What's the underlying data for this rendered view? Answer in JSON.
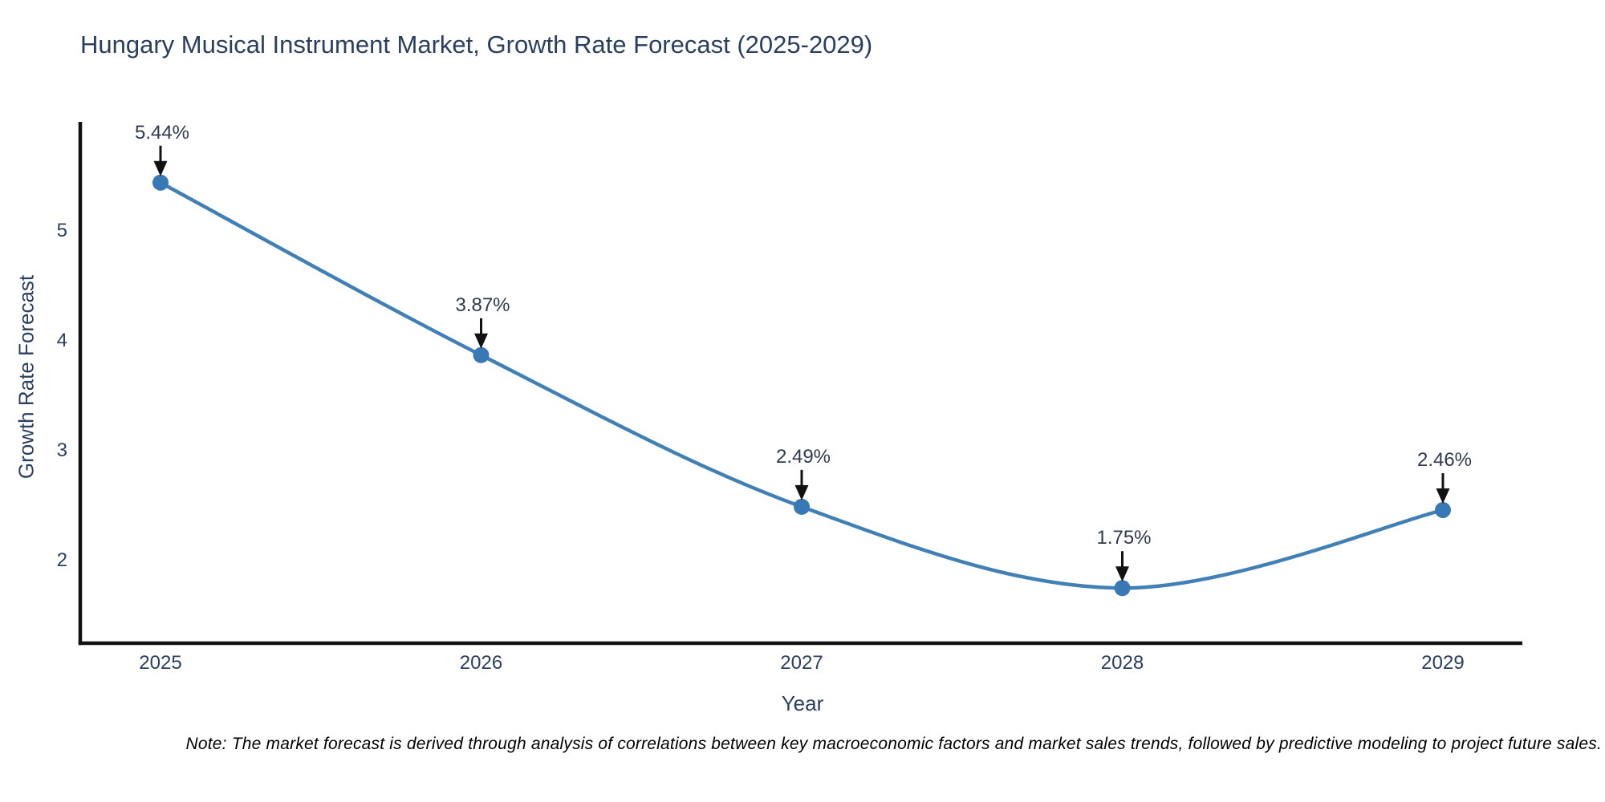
{
  "chart_data": {
    "type": "line",
    "title": "Hungary Musical Instrument Market, Growth Rate Forecast (2025-2029)",
    "xlabel": "Year",
    "ylabel": "Growth Rate Forecast",
    "categories": [
      2025,
      2026,
      2027,
      2028,
      2029
    ],
    "values": [
      5.44,
      3.87,
      2.49,
      1.75,
      2.46
    ],
    "point_labels": [
      "5.44%",
      "3.87%",
      "2.49%",
      "1.75%",
      "2.46%"
    ],
    "y_ticks": [
      2,
      3,
      4,
      5
    ],
    "ylim": [
      1.25,
      6.0
    ],
    "line_shape": "spline",
    "grid": "off",
    "legend": "none",
    "colors": {
      "line": "#4180b4",
      "marker": "#3878b4",
      "arrow": "#111111",
      "axis_spine": "#111111",
      "text": "#2a3f5f"
    },
    "note": "Note: The market forecast is derived through analysis of correlations between key macroeconomic factors and market sales trends, followed by predictive modeling to project future sales."
  }
}
